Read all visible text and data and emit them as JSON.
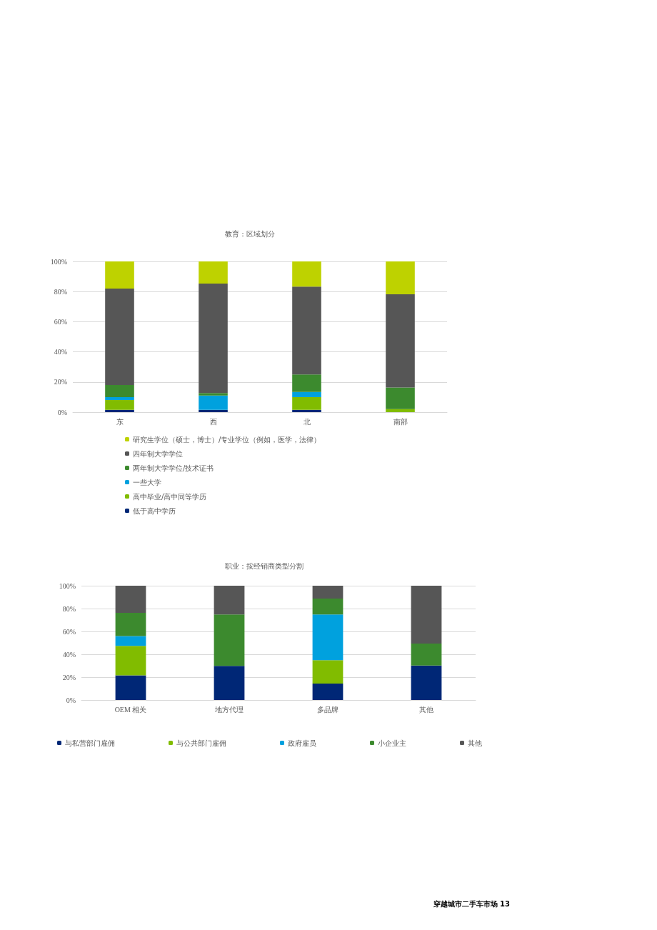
{
  "chart_data": [
    {
      "type": "bar",
      "title": "教育：区域划分",
      "categories": [
        "东",
        "西",
        "北",
        "南部"
      ],
      "stacked": true,
      "ylim": [
        0,
        100
      ],
      "yticks": [
        {
          "value": 0,
          "label": "0%"
        },
        {
          "value": 20,
          "label": "20%"
        },
        {
          "value": 40,
          "label": "40%"
        },
        {
          "value": 60,
          "label": "60%"
        },
        {
          "value": 80,
          "label": "80%"
        },
        {
          "value": 100,
          "label": "100%"
        }
      ],
      "grid": "y",
      "legend": "bottom left",
      "series": [
        {
          "name": "低于高中学历",
          "color": "#002776",
          "values": [
            1.5,
            1.5,
            1.5,
            0
          ]
        },
        {
          "name": "高中毕业/高中同等学历",
          "color": "#81bc00",
          "values": [
            6.5,
            0,
            8.5,
            2
          ]
        },
        {
          "name": "一些大学",
          "color": "#00a1de",
          "values": [
            2,
            9.5,
            3.4,
            0
          ]
        },
        {
          "name": "两年制大学学位/技术证书",
          "color": "#3c8a2e",
          "values": [
            8,
            1.7,
            11.6,
            14.4
          ]
        },
        {
          "name": "四年制大学学位",
          "color": "#565656",
          "values": [
            64,
            72.6,
            58.3,
            61.8
          ]
        },
        {
          "name": "研究生学位（硕士，博士）/专业学位（例如，医学，法律）",
          "color": "#bed200",
          "values": [
            18,
            14.7,
            16.7,
            21.8
          ]
        }
      ]
    },
    {
      "type": "bar",
      "title": "职业：按经销商类型分割",
      "categories": [
        "OEM 相关",
        "地方代理",
        "多品牌",
        "其他"
      ],
      "stacked": true,
      "ylim": [
        0,
        100
      ],
      "yticks": [
        {
          "value": 0,
          "label": "0%"
        },
        {
          "value": 20,
          "label": "20%"
        },
        {
          "value": 40,
          "label": "40%"
        },
        {
          "value": 60,
          "label": "60%"
        },
        {
          "value": 80,
          "label": "80%"
        },
        {
          "value": 100,
          "label": "100%"
        }
      ],
      "grid": "y",
      "legend": "bottom",
      "annotations": [
        "穿越城市二手车市场 13"
      ],
      "series": [
        {
          "name": "与私营部门雇佣",
          "color": "#002776",
          "values": [
            21.5,
            29.8,
            14.4,
            30.2
          ]
        },
        {
          "name": "与公共部门雇佣",
          "color": "#81bc00",
          "values": [
            25.8,
            0,
            20.5,
            0
          ]
        },
        {
          "name": "政府雇员",
          "color": "#00a1de",
          "values": [
            8.6,
            0,
            40,
            0
          ]
        },
        {
          "name": "小企业主",
          "color": "#3c8a2e",
          "values": [
            20.4,
            45.1,
            13.9,
            19.1
          ]
        },
        {
          "name": "其他",
          "color": "#565656",
          "values": [
            23.7,
            25.1,
            11.2,
            50.7
          ]
        }
      ]
    }
  ]
}
